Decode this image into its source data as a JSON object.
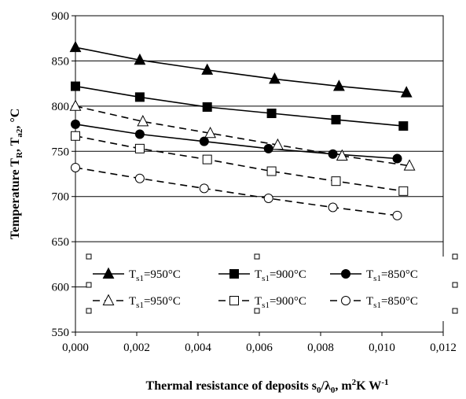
{
  "chart_data": {
    "type": "line",
    "xlabel": "Thermal resistance of deposits s₀/λ₀, m²K W⁻¹",
    "ylabel": "Temperature T_R, T_a2, °C",
    "ylabel_parts": {
      "main": "Temperature T",
      "sub1": "R",
      "sep": ",  T",
      "sub2": "a2",
      "unit": ",  °C"
    },
    "xlabel_parts": {
      "main": "Thermal resistance of deposits s",
      "s_sub": "0",
      "slash": "/λ",
      "l_sub": "0",
      "unit1": ", m",
      "sup1": "2",
      "unit2": "K W",
      "sup2": "-1"
    },
    "xlim": [
      0,
      0.012
    ],
    "ylim": [
      550,
      900
    ],
    "x_ticks": [
      "0,000",
      "0,002",
      "0,004",
      "0,006",
      "0,008",
      "0,010",
      "0,012"
    ],
    "x_tick_values": [
      0,
      0.002,
      0.004,
      0.006,
      0.008,
      0.01,
      0.012
    ],
    "y_ticks": [
      "550",
      "600",
      "650",
      "700",
      "750",
      "800",
      "850",
      "900"
    ],
    "y_tick_values": [
      550,
      600,
      650,
      700,
      750,
      800,
      850,
      900
    ],
    "grid": "horizontal",
    "legend_position": "lower",
    "series": [
      {
        "name": "T_s1=950°C",
        "label_main": "T",
        "label_sub": "s1",
        "label_rest": "=950°C",
        "marker": "triangle",
        "filled": true,
        "dashed": false,
        "x": [
          0.0,
          0.0021,
          0.0043,
          0.0065,
          0.0086,
          0.0108
        ],
        "y": [
          865,
          851,
          840,
          830,
          822,
          815
        ]
      },
      {
        "name": "T_s1=900°C",
        "label_main": "T",
        "label_sub": "s1",
        "label_rest": "=900°C",
        "marker": "square",
        "filled": true,
        "dashed": false,
        "x": [
          0.0,
          0.0021,
          0.0043,
          0.0064,
          0.0085,
          0.0107
        ],
        "y": [
          822,
          810,
          799,
          792,
          785,
          778
        ]
      },
      {
        "name": "T_s1=850°C",
        "label_main": "T",
        "label_sub": "s1",
        "label_rest": "=850°C",
        "marker": "circle",
        "filled": true,
        "dashed": false,
        "x": [
          0.0,
          0.0021,
          0.0042,
          0.0063,
          0.0084,
          0.0105
        ],
        "y": [
          780,
          769,
          761,
          753,
          747,
          742
        ]
      },
      {
        "name": "T_s1=950°C",
        "label_main": "T",
        "label_sub": "s1",
        "label_rest": "=950°C",
        "marker": "triangle",
        "filled": false,
        "dashed": true,
        "x": [
          0.0,
          0.0022,
          0.0044,
          0.0066,
          0.0087,
          0.0109
        ],
        "y": [
          800,
          783,
          770,
          757,
          745,
          734
        ]
      },
      {
        "name": "T_s1=900°C",
        "label_main": "T",
        "label_sub": "s1",
        "label_rest": "=900°C",
        "marker": "square",
        "filled": false,
        "dashed": true,
        "x": [
          0.0,
          0.0021,
          0.0043,
          0.0064,
          0.0085,
          0.0107
        ],
        "y": [
          767,
          753,
          741,
          728,
          717,
          706
        ]
      },
      {
        "name": "T_s1=850°C",
        "label_main": "T",
        "label_sub": "s1",
        "label_rest": "=850°C",
        "marker": "circle",
        "filled": false,
        "dashed": true,
        "x": [
          0.0,
          0.0021,
          0.0042,
          0.0063,
          0.0084,
          0.0105
        ],
        "y": [
          732,
          720,
          709,
          698,
          688,
          679
        ]
      }
    ]
  }
}
